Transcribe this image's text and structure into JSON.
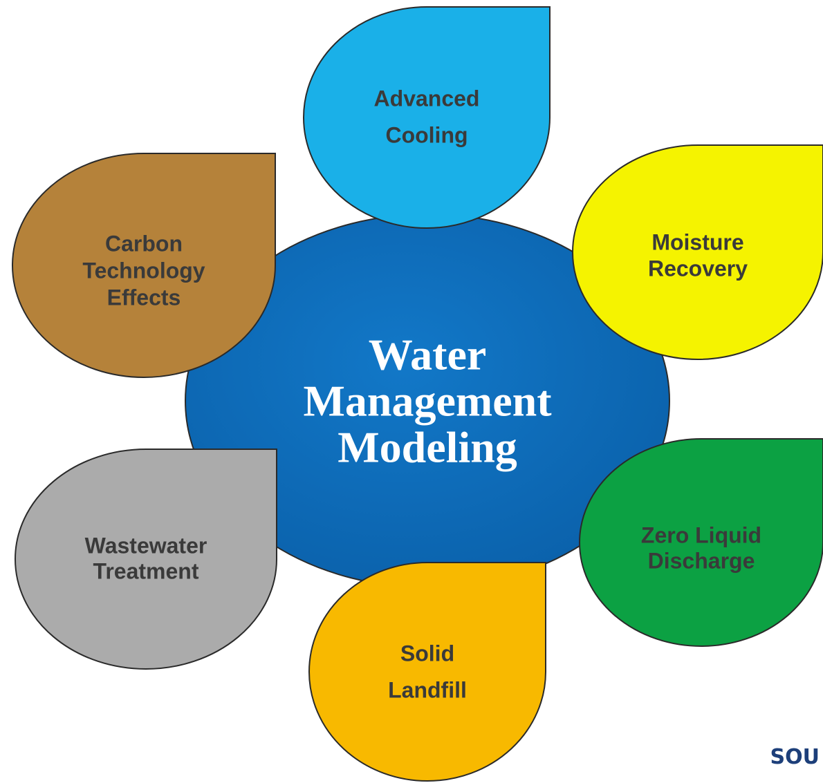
{
  "center": {
    "lines": [
      "Water",
      "Management",
      "Modeling"
    ]
  },
  "nodes": [
    {
      "lines": [
        "Advanced",
        "Cooling"
      ]
    },
    {
      "lines": [
        "Moisture",
        "Recovery"
      ]
    },
    {
      "lines": [
        "Zero Liquid",
        "Discharge"
      ]
    },
    {
      "lines": [
        "Solid",
        "Landfill"
      ]
    },
    {
      "lines": [
        "Wastewater",
        "Treatment"
      ]
    },
    {
      "lines": [
        "Carbon",
        "Technology",
        "Effects"
      ]
    }
  ],
  "footer": "SOU"
}
